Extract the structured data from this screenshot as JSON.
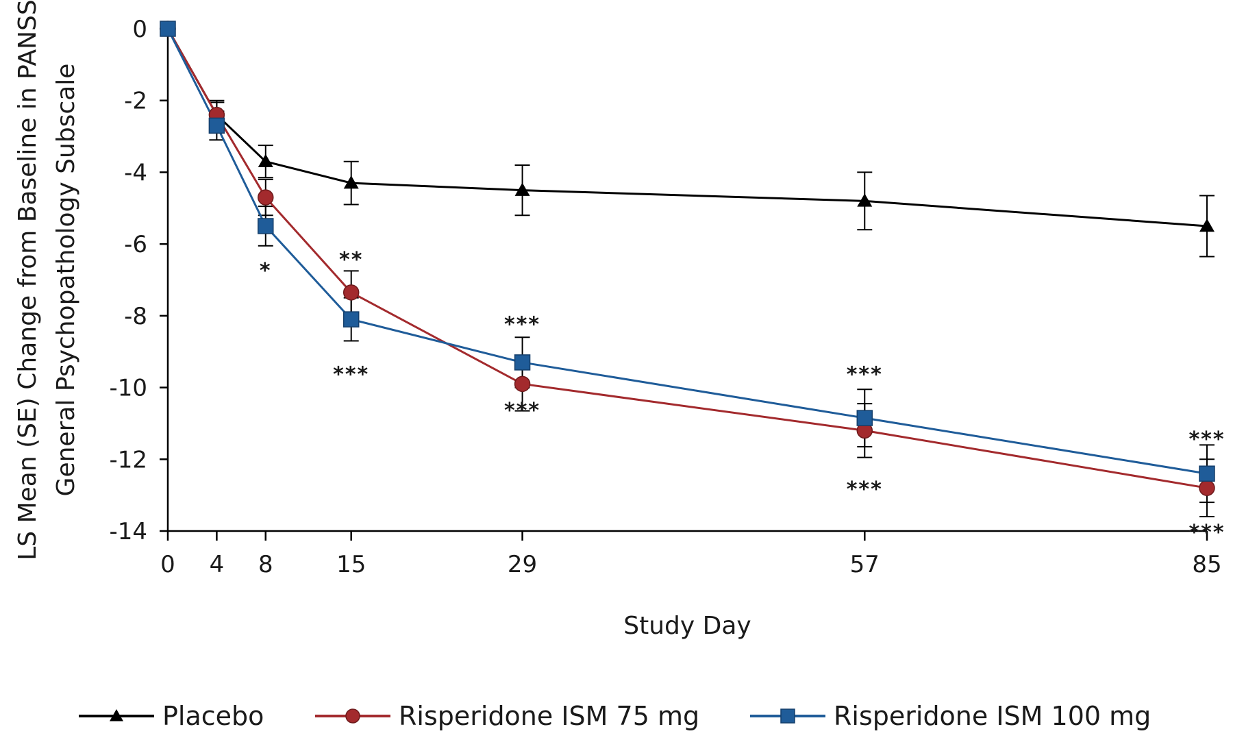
{
  "chart_data": {
    "type": "line",
    "xlabel": "Study Day",
    "ylabel_lines": [
      "LS Mean (SE) Change from Baseline in PANSS",
      "General Psychopathology Subscale"
    ],
    "x": [
      0,
      4,
      8,
      15,
      29,
      57,
      85
    ],
    "x_tick_labels": [
      "0",
      "4",
      "8",
      "15",
      "29",
      "57",
      "85"
    ],
    "y_ticks": [
      0,
      -2,
      -4,
      -6,
      -8,
      -10,
      -12,
      -14
    ],
    "y_tick_labels": [
      "0",
      "-2",
      "-4",
      "-6",
      "-8",
      "-10",
      "-12",
      "-14"
    ],
    "ylim": [
      -14,
      0
    ],
    "xlim": [
      0,
      85
    ],
    "grid": false,
    "legend_position": "bottom",
    "series": [
      {
        "name": "Placebo",
        "marker": "triangle",
        "color": "#000000",
        "values": [
          0,
          -2.4,
          -3.7,
          -4.3,
          -4.5,
          -4.8,
          -5.5
        ],
        "se": [
          0,
          0.4,
          0.45,
          0.6,
          0.7,
          0.8,
          0.85
        ]
      },
      {
        "name": "Risperidone ISM 75 mg",
        "marker": "circle",
        "color": "#a32a2d",
        "values": [
          0,
          -2.4,
          -4.7,
          -7.35,
          -9.9,
          -11.2,
          -12.8
        ],
        "se": [
          0,
          0.35,
          0.5,
          0.6,
          0.75,
          0.75,
          0.8
        ]
      },
      {
        "name": "Risperidone ISM 100 mg",
        "marker": "square",
        "color": "#1f5c99",
        "values": [
          0,
          -2.7,
          -5.5,
          -8.1,
          -9.3,
          -10.85,
          -12.4
        ],
        "se": [
          0,
          0.4,
          0.55,
          0.6,
          0.7,
          0.8,
          0.8
        ]
      }
    ],
    "annotations": [
      {
        "x": 8,
        "y": -6.7,
        "text": "*"
      },
      {
        "x": 15,
        "y": -6.4,
        "text": "**"
      },
      {
        "x": 15,
        "y": -9.6,
        "text": "***"
      },
      {
        "x": 29,
        "y": -8.2,
        "text": "***"
      },
      {
        "x": 29,
        "y": -10.6,
        "text": "***"
      },
      {
        "x": 57,
        "y": -9.6,
        "text": "***"
      },
      {
        "x": 57,
        "y": -12.8,
        "text": "***"
      },
      {
        "x": 85,
        "y": -11.4,
        "text": "***"
      },
      {
        "x": 85,
        "y": -14.0,
        "text": "***"
      }
    ]
  }
}
